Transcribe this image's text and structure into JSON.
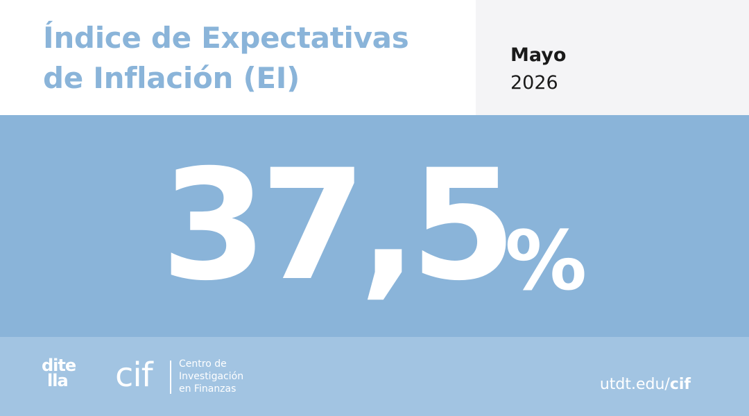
{
  "header": {
    "title_line1": "Índice de Expectativas",
    "title_line2": "de Inflación (EI)",
    "month": "Mayo",
    "year": "2026"
  },
  "main": {
    "value": "37,5",
    "unit": "%"
  },
  "footer": {
    "ditella_logo_line1": "dite",
    "ditella_logo_line2": "lla",
    "cif_logo_text": "cif",
    "cif_name_line1": "Centro de",
    "cif_name_line2": "Investigación",
    "cif_name_line3": "en Finanzas",
    "site_prefix": "utdt.edu/",
    "site_suffix": "cif"
  },
  "colors": {
    "title": "#8ab4d9",
    "main_background": "#8ab4d9",
    "footer_background": "#a2c4e2",
    "date_background": "#f4f4f6",
    "text_dark": "#1a1a1a",
    "text_light": "#ffffff"
  }
}
